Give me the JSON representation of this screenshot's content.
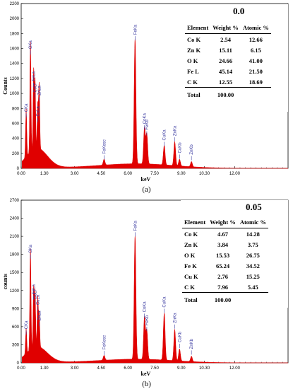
{
  "chart_data": [
    {
      "type": "bar",
      "panel_label": "(a)",
      "sample": "0.0",
      "ylabel": "Counts",
      "xlabel": "keV",
      "ylim": [
        0,
        2200
      ],
      "xlim": [
        0,
        15.0
      ],
      "y_ticks": [
        "0",
        "200",
        "400",
        "600",
        "800",
        "1000",
        "1200",
        "1400",
        "1600",
        "1800",
        "2000",
        "2200"
      ],
      "x_ticks": [
        "0.00",
        "1.30",
        "3.00",
        "4.50",
        "6.00",
        "7.50",
        "9.00",
        "10.30",
        "12.00"
      ],
      "x_tick_values": [
        0,
        1.3,
        3.0,
        4.5,
        6.0,
        7.5,
        9.0,
        10.3,
        12.0
      ],
      "peaks": [
        {
          "label": "CKa",
          "x": 0.28,
          "y": 640
        },
        {
          "label": "OKa",
          "x": 0.52,
          "y": 1480
        },
        {
          "label": "FeLa",
          "x": 0.7,
          "y": 1050
        },
        {
          "label": "CoLl",
          "x": 0.78,
          "y": 900
        },
        {
          "label": "ZnLa",
          "x": 1.01,
          "y": 860
        },
        {
          "label": "CuLa",
          "x": 0.93,
          "y": 580
        },
        {
          "label": "FeKesc",
          "x": 4.66,
          "y": 80
        },
        {
          "label": "FeKa",
          "x": 6.4,
          "y": 1670
        },
        {
          "label": "CoKa",
          "x": 6.93,
          "y": 480
        },
        {
          "label": "FeKb",
          "x": 7.06,
          "y": 400
        },
        {
          "label": "CuKa",
          "x": 8.04,
          "y": 260
        },
        {
          "label": "ZnKa",
          "x": 8.63,
          "y": 320
        },
        {
          "label": "CuKb",
          "x": 8.9,
          "y": 90
        },
        {
          "label": "ZnKb",
          "x": 9.57,
          "y": 70
        }
      ],
      "table": {
        "headers": [
          "Element",
          "Weight %",
          "Atomic %"
        ],
        "rows": [
          [
            "Co K",
            "2.54",
            "12.66"
          ],
          [
            "Zn K",
            "15.11",
            "6.15"
          ],
          [
            "O K",
            "24.66",
            "41.00"
          ],
          [
            "Fe L",
            "45.14",
            "21.50"
          ],
          [
            "C K",
            "12.55",
            "18.69"
          ]
        ],
        "total_label": "Total",
        "total_value": "100.00"
      }
    },
    {
      "type": "bar",
      "panel_label": "(b)",
      "sample": "0.05",
      "ylabel": "counts",
      "xlabel": "keV",
      "ylim": [
        0,
        2700
      ],
      "xlim": [
        0,
        15.0
      ],
      "y_ticks": [
        "0",
        "300",
        "600",
        "900",
        "1200",
        "1500",
        "1800",
        "2100",
        "2400",
        "2700"
      ],
      "x_ticks": [
        "0.00",
        "1.30",
        "3.00",
        "4.50",
        "6.00",
        "7.50",
        "9.00",
        "10.30",
        "12.00"
      ],
      "x_tick_values": [
        0,
        1.3,
        3.0,
        4.5,
        6.0,
        7.5,
        9.0,
        10.3,
        12.0
      ],
      "peaks": [
        {
          "label": "CKa",
          "x": 0.28,
          "y": 420
        },
        {
          "label": "OKa",
          "x": 0.52,
          "y": 1680
        },
        {
          "label": "FeLa",
          "x": 0.7,
          "y": 1000
        },
        {
          "label": "CoLl",
          "x": 0.78,
          "y": 920
        },
        {
          "label": "CuLa",
          "x": 0.93,
          "y": 820
        },
        {
          "label": "ZnLa",
          "x": 1.01,
          "y": 560
        },
        {
          "label": "FeKesc",
          "x": 4.66,
          "y": 80
        },
        {
          "label": "FeKa",
          "x": 6.4,
          "y": 2050
        },
        {
          "label": "CoKa",
          "x": 6.93,
          "y": 700
        },
        {
          "label": "FeKb",
          "x": 7.06,
          "y": 480
        },
        {
          "label": "CuKa",
          "x": 8.04,
          "y": 780
        },
        {
          "label": "ZnKa",
          "x": 8.63,
          "y": 520
        },
        {
          "label": "CuKb",
          "x": 8.9,
          "y": 200
        },
        {
          "label": "ZnKb",
          "x": 9.57,
          "y": 90
        }
      ],
      "table": {
        "headers": [
          "Element",
          "Weight %",
          "Atomic %"
        ],
        "rows": [
          [
            "Co K",
            "4.67",
            "14.28"
          ],
          [
            "Zn K",
            "3.84",
            "3.75"
          ],
          [
            "O K",
            "15.53",
            "26.75"
          ],
          [
            "Fe K",
            "65.24",
            "34.52"
          ],
          [
            "Cu K",
            "2.76",
            "15.25"
          ],
          [
            "C K",
            "7.96",
            "5.45"
          ]
        ],
        "total_label": "Total",
        "total_value": "100.00"
      }
    }
  ],
  "colors": {
    "spectrum": "#e00000",
    "label": "#3a3aa0",
    "grid": "#bbbbbb"
  }
}
